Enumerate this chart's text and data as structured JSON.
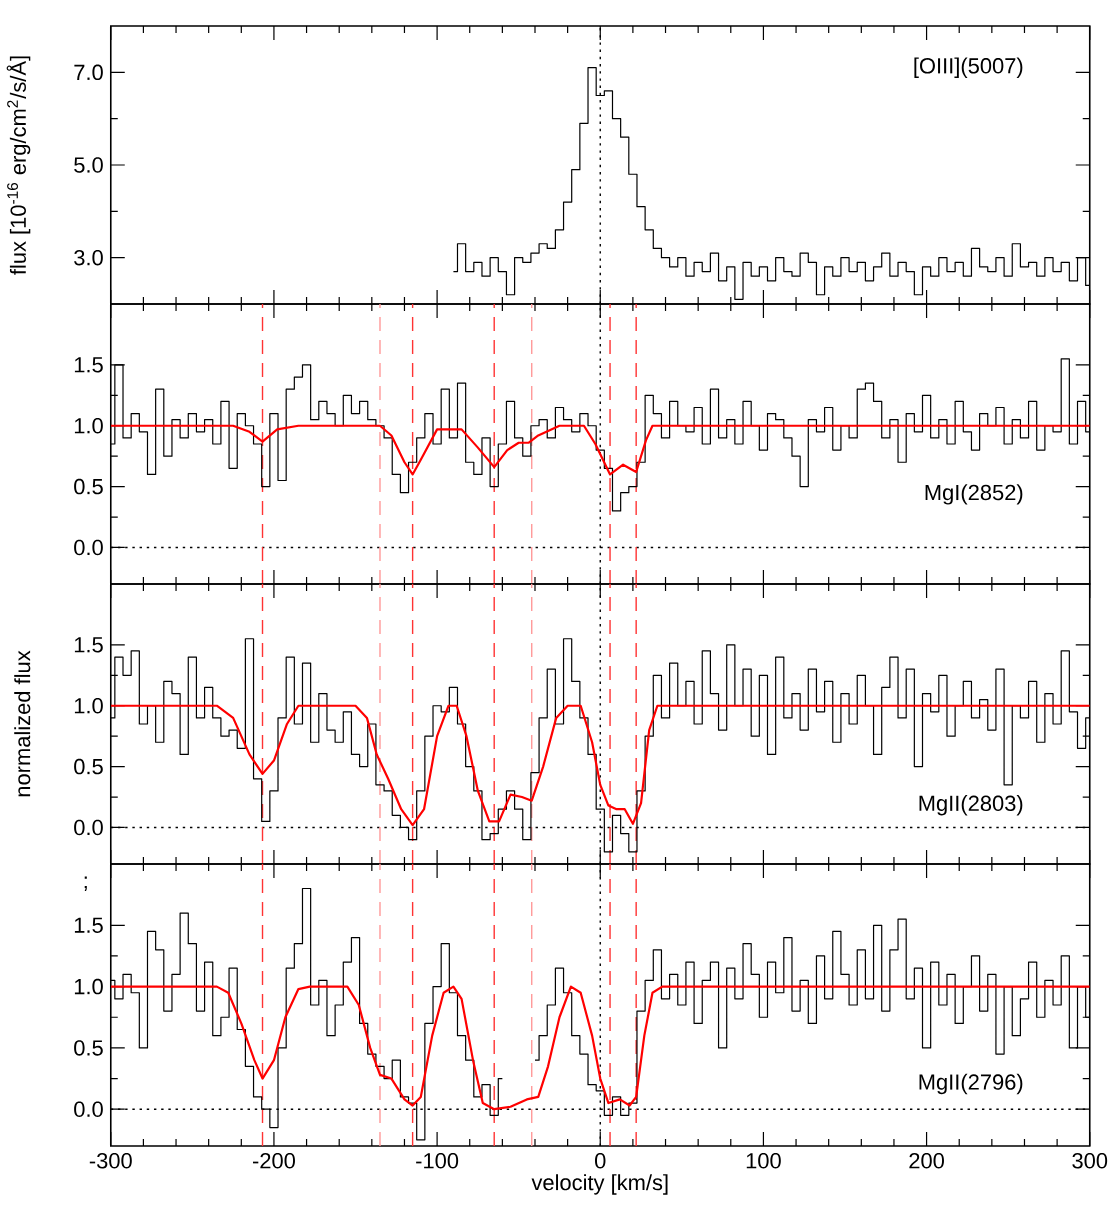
{
  "chart_data": [
    {
      "type": "step",
      "color": "#000000",
      "ylabel": "flux [10$^{-16}$ erg/cm$^{2}$/s/Å]",
      "tick_labels": "y",
      "xlim": [
        -300,
        300
      ],
      "xticks": [
        -300,
        -200,
        -100,
        0,
        100,
        200,
        300
      ],
      "ylim": [
        2.0,
        8.0
      ],
      "yticks": [
        {
          "value": 3,
          "label": "3.0"
        },
        {
          "value": 5,
          "label": "5.0"
        },
        {
          "value": 7,
          "label": "7.0"
        }
      ],
      "annotations": [
        "[OIII](5007)"
      ],
      "ref_lines": [
        {
          "axis": "x",
          "value": 0,
          "color": "#000000",
          "line_style": "dotted"
        }
      ],
      "x": [
        -90,
        -85,
        -80,
        -75,
        -70,
        -65,
        -60,
        -55,
        -50,
        -45,
        -40,
        -35,
        -30,
        -25,
        -20,
        -15,
        -10,
        -5,
        0,
        5,
        10,
        15,
        20,
        25,
        30,
        35,
        40,
        45,
        50,
        55,
        60,
        65,
        70,
        75,
        80,
        85,
        90,
        95,
        100,
        105,
        110,
        115,
        120,
        125,
        130,
        135,
        140,
        145,
        150,
        155,
        160,
        165,
        170,
        175,
        180,
        185,
        190,
        195,
        200,
        205,
        210,
        215,
        220,
        225,
        230,
        235,
        240,
        245,
        250,
        255,
        260,
        265,
        270,
        275,
        280,
        285,
        290,
        295,
        300
      ],
      "values": [
        2.7,
        3.3,
        2.7,
        2.9,
        2.6,
        3.0,
        2.7,
        2.2,
        3.0,
        2.9,
        3.1,
        3.3,
        3.2,
        3.6,
        4.2,
        4.9,
        5.9,
        7.1,
        6.5,
        6.6,
        6.0,
        5.6,
        4.8,
        4.1,
        3.6,
        3.2,
        3.0,
        2.8,
        3.0,
        2.6,
        2.9,
        2.7,
        3.1,
        2.5,
        2.8,
        2.1,
        2.9,
        2.6,
        2.8,
        2.5,
        3.0,
        2.7,
        2.6,
        3.1,
        2.9,
        2.2,
        2.8,
        2.6,
        3.0,
        2.7,
        2.9,
        2.5,
        2.8,
        3.1,
        2.6,
        2.9,
        2.7,
        2.2,
        2.8,
        2.6,
        3.0,
        2.7,
        2.9,
        2.6,
        3.2,
        2.8,
        2.7,
        3.0,
        2.6,
        3.3,
        2.8,
        2.9,
        2.6,
        3.0,
        2.7,
        2.9,
        2.5,
        3.0,
        2.4
      ]
    },
    {
      "type": "step",
      "tick_labels": "y",
      "xlim": [
        -300,
        300
      ],
      "xticks": [
        -300,
        -200,
        -100,
        0,
        100,
        200,
        300
      ],
      "ylim": [
        -0.3,
        2.0
      ],
      "yticks": [
        {
          "value": 0,
          "label": "0.0"
        },
        {
          "value": 0.5,
          "label": "0.5"
        },
        {
          "value": 1,
          "label": "1.0"
        },
        {
          "value": 1.5,
          "label": "1.5"
        }
      ],
      "annotations": [
        "MgI(2852)"
      ],
      "ref_lines": [
        {
          "axis": "x",
          "value": 0,
          "color": "#000000",
          "line_style": "dotted"
        },
        {
          "axis": "y",
          "value": 0,
          "color": "#000000",
          "line_style": "dotted"
        },
        {
          "axis": "x",
          "value": -207,
          "color": "#ff3333",
          "line_style": "dashed"
        },
        {
          "axis": "x",
          "value": -135,
          "color": "#ff9999",
          "line_style": "dashed"
        },
        {
          "axis": "x",
          "value": -115,
          "color": "#ff3333",
          "line_style": "dashed"
        },
        {
          "axis": "x",
          "value": -65,
          "color": "#ff3333",
          "line_style": "dashed"
        },
        {
          "axis": "x",
          "value": -42,
          "color": "#ff9999",
          "line_style": "dashed"
        },
        {
          "axis": "x",
          "value": 6,
          "color": "#ff3333",
          "line_style": "dashed"
        },
        {
          "axis": "x",
          "value": 22,
          "color": "#ff3333",
          "line_style": "dashed"
        }
      ],
      "x": [
        -300,
        -295,
        -290,
        -285,
        -280,
        -275,
        -270,
        -265,
        -260,
        -255,
        -250,
        -245,
        -240,
        -235,
        -230,
        -225,
        -220,
        -215,
        -210,
        -205,
        -200,
        -195,
        -190,
        -185,
        -180,
        -175,
        -170,
        -165,
        -160,
        -155,
        -150,
        -145,
        -140,
        -135,
        -130,
        -125,
        -120,
        -115,
        -110,
        -105,
        -100,
        -95,
        -90,
        -85,
        -80,
        -75,
        -70,
        -65,
        -60,
        -55,
        -50,
        -45,
        -40,
        -35,
        -30,
        -25,
        -20,
        -15,
        -10,
        -5,
        0,
        5,
        10,
        15,
        20,
        25,
        30,
        35,
        40,
        45,
        50,
        55,
        60,
        65,
        70,
        75,
        80,
        85,
        90,
        95,
        100,
        105,
        110,
        115,
        120,
        125,
        130,
        135,
        140,
        145,
        150,
        155,
        160,
        165,
        170,
        175,
        180,
        185,
        190,
        195,
        200,
        205,
        210,
        215,
        220,
        225,
        230,
        235,
        240,
        245,
        250,
        255,
        260,
        265,
        270,
        275,
        280,
        285,
        290,
        295,
        300
      ],
      "series": [
        {
          "color": "#000000",
          "values": [
            0.85,
            1.5,
            0.9,
            1.1,
            0.95,
            0.6,
            1.3,
            0.75,
            1.05,
            0.9,
            1.1,
            0.95,
            1.05,
            0.85,
            1.2,
            0.65,
            1.1,
            1.0,
            0.85,
            0.5,
            1.1,
            0.55,
            1.3,
            1.4,
            1.5,
            1.05,
            1.2,
            1.1,
            1.0,
            1.25,
            1.1,
            1.2,
            1.05,
            1.0,
            0.9,
            0.6,
            0.45,
            0.7,
            0.9,
            1.1,
            0.85,
            1.3,
            0.9,
            1.35,
            0.7,
            0.6,
            0.9,
            0.5,
            0.85,
            1.2,
            0.9,
            0.75,
            1.0,
            1.05,
            0.9,
            1.15,
            1.05,
            0.95,
            1.1,
            1.0,
            0.8,
            0.65,
            0.3,
            0.45,
            0.5,
            0.7,
            1.25,
            1.1,
            0.9,
            1.2,
            1.0,
            0.95,
            1.15,
            0.85,
            1.3,
            0.9,
            1.05,
            0.85,
            1.2,
            1.0,
            0.8,
            1.1,
            1.05,
            0.9,
            0.75,
            0.5,
            1.05,
            0.95,
            1.15,
            0.8,
            1.0,
            0.9,
            1.3,
            1.35,
            1.2,
            0.9,
            1.05,
            0.7,
            1.1,
            0.95,
            1.25,
            0.9,
            1.05,
            0.85,
            1.2,
            0.95,
            0.8,
            1.1,
            1.0,
            1.15,
            0.85,
            1.05,
            0.9,
            1.2,
            0.8,
            1.0,
            0.95,
            1.55,
            0.85,
            1.2,
            0.95
          ]
        },
        {
          "type": "line",
          "color": "#ff0000",
          "x": [
            -300,
            -225,
            -215,
            -207,
            -198,
            -185,
            -135,
            -128,
            -120,
            -115,
            -110,
            -100,
            -85,
            -75,
            -65,
            -57,
            -50,
            -44,
            -38,
            -25,
            -10,
            -3,
            6,
            14,
            22,
            28,
            32,
            300
          ],
          "values": [
            1,
            1,
            0.95,
            0.87,
            0.97,
            1,
            1,
            0.92,
            0.7,
            0.6,
            0.72,
            0.97,
            0.97,
            0.82,
            0.66,
            0.8,
            0.86,
            0.86,
            0.92,
            1,
            1,
            0.85,
            0.6,
            0.68,
            0.62,
            0.88,
            1,
            1
          ]
        }
      ]
    },
    {
      "type": "step",
      "tick_labels": "y",
      "ylabel": "normalized flux",
      "xlim": [
        -300,
        300
      ],
      "xticks": [
        -300,
        -200,
        -100,
        0,
        100,
        200,
        300
      ],
      "ylim": [
        -0.3,
        2.0
      ],
      "yticks": [
        {
          "value": 0,
          "label": "0.0"
        },
        {
          "value": 0.5,
          "label": "0.5"
        },
        {
          "value": 1,
          "label": "1.0"
        },
        {
          "value": 1.5,
          "label": "1.5"
        }
      ],
      "annotations": [
        "MgII(2803)"
      ],
      "ref_lines": [
        {
          "axis": "x",
          "value": 0,
          "color": "#000000",
          "line_style": "dotted"
        },
        {
          "axis": "y",
          "value": 0,
          "color": "#000000",
          "line_style": "dotted"
        },
        {
          "axis": "x",
          "value": -207,
          "color": "#ff3333",
          "line_style": "dashed"
        },
        {
          "axis": "x",
          "value": -135,
          "color": "#ff9999",
          "line_style": "dashed"
        },
        {
          "axis": "x",
          "value": -115,
          "color": "#ff3333",
          "line_style": "dashed"
        },
        {
          "axis": "x",
          "value": -65,
          "color": "#ff3333",
          "line_style": "dashed"
        },
        {
          "axis": "x",
          "value": -42,
          "color": "#ff9999",
          "line_style": "dashed"
        },
        {
          "axis": "x",
          "value": 6,
          "color": "#ff3333",
          "line_style": "dashed"
        },
        {
          "axis": "x",
          "value": 22,
          "color": "#ff3333",
          "line_style": "dashed"
        }
      ],
      "x": [
        -300,
        -295,
        -290,
        -285,
        -280,
        -275,
        -270,
        -265,
        -260,
        -255,
        -250,
        -245,
        -240,
        -235,
        -230,
        -225,
        -220,
        -215,
        -210,
        -205,
        -200,
        -195,
        -190,
        -185,
        -180,
        -175,
        -170,
        -165,
        -160,
        -155,
        -150,
        -145,
        -140,
        -135,
        -130,
        -125,
        -120,
        -115,
        -110,
        -105,
        -100,
        -95,
        -90,
        -85,
        -80,
        -75,
        -70,
        -65,
        -60,
        -55,
        -50,
        -45,
        -40,
        -35,
        -30,
        -25,
        -20,
        -15,
        -10,
        -5,
        0,
        5,
        10,
        15,
        20,
        25,
        30,
        35,
        40,
        45,
        50,
        55,
        60,
        65,
        70,
        75,
        80,
        85,
        90,
        95,
        100,
        105,
        110,
        115,
        120,
        125,
        130,
        135,
        140,
        145,
        150,
        155,
        160,
        165,
        170,
        175,
        180,
        185,
        190,
        195,
        200,
        205,
        210,
        215,
        220,
        225,
        230,
        235,
        240,
        245,
        250,
        255,
        260,
        265,
        270,
        275,
        280,
        285,
        290,
        295,
        300
      ],
      "series": [
        {
          "color": "#000000",
          "values": [
            0.9,
            1.4,
            1.25,
            1.45,
            0.85,
            1.0,
            0.7,
            1.2,
            1.1,
            0.6,
            1.4,
            0.9,
            1.15,
            0.9,
            0.75,
            0.8,
            0.65,
            1.55,
            0.4,
            0.05,
            0.3,
            0.9,
            1.4,
            0.85,
            1.35,
            0.7,
            1.1,
            0.8,
            0.7,
            0.95,
            0.6,
            0.5,
            0.85,
            0.35,
            0.3,
            0.1,
            0.0,
            -0.1,
            0.3,
            0.75,
            1.0,
            0.95,
            1.15,
            0.85,
            0.5,
            0.3,
            -0.1,
            -0.05,
            0.15,
            0.3,
            0.15,
            -0.1,
            0.45,
            0.9,
            1.3,
            0.85,
            1.55,
            1.2,
            0.9,
            0.6,
            0.15,
            -0.2,
            0.1,
            -0.05,
            -0.2,
            0.3,
            0.75,
            1.25,
            0.9,
            1.35,
            1.0,
            1.2,
            0.85,
            1.45,
            1.1,
            0.8,
            1.5,
            1.0,
            1.3,
            0.75,
            1.25,
            0.6,
            1.4,
            0.9,
            1.1,
            0.8,
            1.3,
            0.95,
            1.2,
            0.7,
            1.1,
            0.85,
            1.25,
            1.0,
            0.6,
            1.15,
            1.4,
            0.9,
            1.3,
            0.5,
            1.1,
            0.95,
            1.25,
            0.75,
            1.0,
            1.2,
            0.9,
            1.05,
            0.8,
            1.3,
            0.35,
            1.0,
            0.9,
            1.2,
            0.7,
            1.1,
            0.85,
            1.45,
            0.95,
            0.65,
            0.9
          ]
        },
        {
          "type": "line",
          "color": "#ff0000",
          "x": [
            -300,
            -235,
            -225,
            -215,
            -207,
            -200,
            -192,
            -185,
            -150,
            -143,
            -137,
            -130,
            -122,
            -115,
            -108,
            -100,
            -93,
            -88,
            -82,
            -75,
            -68,
            -62,
            -55,
            -48,
            -42,
            -35,
            -27,
            -20,
            -12,
            -5,
            0,
            5,
            10,
            15,
            20,
            25,
            30,
            35,
            300
          ],
          "values": [
            1,
            1,
            0.9,
            0.6,
            0.44,
            0.55,
            0.85,
            1,
            1,
            0.9,
            0.6,
            0.4,
            0.15,
            0.02,
            0.15,
            0.75,
            1,
            1,
            0.75,
            0.3,
            0.05,
            0.05,
            0.27,
            0.25,
            0.22,
            0.5,
            0.9,
            1,
            1,
            0.7,
            0.35,
            0.18,
            0.15,
            0.15,
            0.03,
            0.2,
            0.8,
            1,
            1
          ]
        }
      ]
    },
    {
      "type": "step",
      "xlabel": "velocity [km/s]",
      "xlim": [
        -300,
        300
      ],
      "xticks": [
        -300,
        -200,
        -100,
        0,
        100,
        200,
        300
      ],
      "ylim": [
        -0.3,
        2.0
      ],
      "yticks": [
        {
          "value": 0,
          "label": "0.0"
        },
        {
          "value": 0.5,
          "label": "0.5"
        },
        {
          "value": 1,
          "label": "1.0"
        },
        {
          "value": 1.5,
          "label": "1.5"
        }
      ],
      "annotations": [
        "MgII(2796)",
        ";"
      ],
      "ref_lines": [
        {
          "axis": "x",
          "value": 0,
          "color": "#000000",
          "line_style": "dotted"
        },
        {
          "axis": "y",
          "value": 0,
          "color": "#000000",
          "line_style": "dotted"
        },
        {
          "axis": "x",
          "value": -207,
          "color": "#ff3333",
          "line_style": "dashed"
        },
        {
          "axis": "x",
          "value": -135,
          "color": "#ff9999",
          "line_style": "dashed"
        },
        {
          "axis": "x",
          "value": -115,
          "color": "#ff3333",
          "line_style": "dashed"
        },
        {
          "axis": "x",
          "value": -65,
          "color": "#ff3333",
          "line_style": "dashed"
        },
        {
          "axis": "x",
          "value": -42,
          "color": "#ff9999",
          "line_style": "dashed"
        },
        {
          "axis": "x",
          "value": 6,
          "color": "#ff3333",
          "line_style": "dashed"
        },
        {
          "axis": "x",
          "value": 22,
          "color": "#ff3333",
          "line_style": "dashed"
        }
      ],
      "x": [
        -300,
        -295,
        -290,
        -285,
        -280,
        -275,
        -270,
        -265,
        -260,
        -255,
        -250,
        -245,
        -240,
        -235,
        -230,
        -225,
        -220,
        -215,
        -210,
        -205,
        -200,
        -195,
        -190,
        -185,
        -180,
        -175,
        -170,
        -165,
        -160,
        -155,
        -150,
        -145,
        -140,
        -135,
        -130,
        -125,
        -120,
        -115,
        -110,
        -105,
        -100,
        -95,
        -90,
        -85,
        -80,
        -75,
        -70,
        -65,
        -60,
        -55,
        -50,
        -45,
        -40,
        -35,
        -30,
        -25,
        -20,
        -15,
        -10,
        -5,
        0,
        5,
        10,
        15,
        20,
        25,
        30,
        35,
        40,
        45,
        50,
        55,
        60,
        65,
        70,
        75,
        80,
        85,
        90,
        95,
        100,
        105,
        110,
        115,
        120,
        125,
        130,
        135,
        140,
        145,
        150,
        155,
        160,
        165,
        170,
        175,
        180,
        185,
        190,
        195,
        200,
        205,
        210,
        215,
        220,
        225,
        230,
        235,
        240,
        245,
        250,
        255,
        260,
        265,
        270,
        275,
        280,
        285,
        290,
        295,
        300
      ],
      "series": [
        {
          "color": "#000000",
          "values": [
            1.05,
            0.9,
            1.1,
            0.95,
            0.5,
            1.45,
            1.3,
            0.8,
            1.1,
            1.6,
            1.35,
            0.8,
            1.2,
            0.6,
            0.75,
            1.15,
            0.65,
            0.35,
            0.1,
            0.0,
            -0.15,
            0.5,
            1.15,
            1.35,
            1.8,
            0.85,
            1.05,
            0.6,
            0.85,
            1.2,
            1.4,
            0.7,
            0.45,
            0.35,
            0.25,
            0.4,
            0.1,
            0.05,
            -0.25,
            0.7,
            1.0,
            1.35,
            0.95,
            0.6,
            0.4,
            0.1,
            0.2,
            -0.05,
            0.25,
            null,
            null,
            null,
            0.4,
            0.6,
            0.85,
            1.15,
            0.95,
            0.6,
            0.45,
            0.2,
            0.15,
            -0.05,
            0.1,
            -0.05,
            0.05,
            0.8,
            1.05,
            1.3,
            0.9,
            1.1,
            0.85,
            1.2,
            0.7,
            1.05,
            1.2,
            0.5,
            1.15,
            0.9,
            1.35,
            1.1,
            0.75,
            1.2,
            0.95,
            1.4,
            0.8,
            1.05,
            0.7,
            1.25,
            0.9,
            1.45,
            1.1,
            0.85,
            1.3,
            0.9,
            1.5,
            0.8,
            1.3,
            1.55,
            0.9,
            1.15,
            0.5,
            1.2,
            0.85,
            1.1,
            0.7,
            1.0,
            1.25,
            0.8,
            1.1,
            0.45,
            1.0,
            0.6,
            0.9,
            1.2,
            0.75,
            1.05,
            0.85,
            1.25,
            0.5,
            1.0,
            0.75
          ]
        },
        {
          "type": "line",
          "color": "#ff0000",
          "x": [
            -300,
            -235,
            -228,
            -220,
            -212,
            -207,
            -200,
            -193,
            -185,
            -178,
            -155,
            -148,
            -141,
            -135,
            -128,
            -120,
            -115,
            -110,
            -103,
            -96,
            -90,
            -85,
            -78,
            -72,
            -65,
            -55,
            -45,
            -38,
            -32,
            -25,
            -18,
            -12,
            -5,
            0,
            5,
            12,
            18,
            22,
            27,
            32,
            38,
            300
          ],
          "values": [
            1,
            1,
            0.95,
            0.7,
            0.4,
            0.25,
            0.4,
            0.75,
            0.98,
            1,
            1,
            0.85,
            0.5,
            0.28,
            0.25,
            0.08,
            0.03,
            0.1,
            0.6,
            0.95,
            1,
            0.9,
            0.4,
            0.05,
            0,
            0.02,
            0.08,
            0.1,
            0.35,
            0.75,
            1,
            0.95,
            0.6,
            0.25,
            0.05,
            0.08,
            0.03,
            0.1,
            0.6,
            0.95,
            1,
            1
          ]
        }
      ]
    }
  ]
}
